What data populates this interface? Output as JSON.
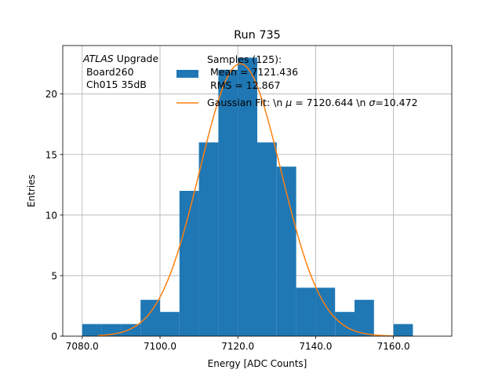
{
  "chart_data": {
    "type": "bar",
    "title": "Run 735",
    "xlabel": "Energy [ADC Counts]",
    "ylabel": "Entries",
    "xlim": [
      7075,
      7175
    ],
    "ylim": [
      0,
      24
    ],
    "x_ticks": [
      7080,
      7100,
      7120,
      7140,
      7160
    ],
    "x_tick_labels": [
      "7080.0",
      "7100.0",
      "7120.0",
      "7140.0",
      "7160.0"
    ],
    "y_ticks": [
      0,
      5,
      10,
      15,
      20
    ],
    "y_tick_labels": [
      "0",
      "5",
      "10",
      "15",
      "20"
    ],
    "grid": true,
    "legend_position": "top-right",
    "bar_color": "#1f77b4",
    "fit_color": "#ff7f0e",
    "histogram": {
      "bin_edges": [
        7080,
        7085,
        7090,
        7095,
        7100,
        7105,
        7110,
        7115,
        7120,
        7125,
        7130,
        7135,
        7140,
        7145,
        7150,
        7155,
        7160,
        7165,
        7170
      ],
      "counts": [
        1,
        1,
        1,
        3,
        2,
        12,
        16,
        22,
        23,
        16,
        14,
        4,
        4,
        2,
        3,
        0,
        1,
        0
      ]
    },
    "fit": {
      "mu": 7120.644,
      "sigma": 10.472,
      "amplitude": 22.5,
      "x_range": [
        7084,
        7160
      ]
    },
    "annotation_lines": [
      "ATLAS Upgrade",
      " Board260",
      " Ch015 35dB"
    ],
    "annotation_italic": "ATLAS",
    "annotation_rest": " Upgrade",
    "legend": {
      "histogram_label_lines": [
        "Samples (125):",
        " Mean = 7121.436",
        " RMS = 12.867"
      ],
      "fit_label_prefix": "Gaussian Fit: \\n ",
      "fit_label_mu_symbol": "μ",
      "fit_label_mid": " = 7120.644 \\n ",
      "fit_label_sigma_symbol": "σ",
      "fit_label_suffix": "=10.472"
    }
  }
}
